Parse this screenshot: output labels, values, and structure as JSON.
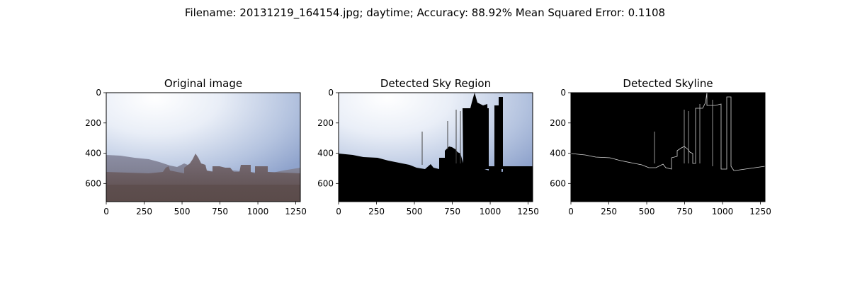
{
  "figure": {
    "suptitle": "Filename: 20131219_164154.jpg; daytime; Accuracy: 88.92% Mean Squared Error: 0.1108"
  },
  "chart_data": [
    {
      "type": "image",
      "title": "Original image",
      "xlim": [
        0,
        1280
      ],
      "ylim": [
        720,
        0
      ],
      "xticks": [
        0,
        250,
        500,
        750,
        1000,
        1250
      ],
      "yticks": [
        0,
        200,
        400,
        600
      ]
    },
    {
      "type": "image",
      "title": "Detected Sky Region",
      "xlim": [
        0,
        1280
      ],
      "ylim": [
        720,
        0
      ],
      "xticks": [
        0,
        250,
        500,
        750,
        1000,
        1250
      ],
      "yticks": [
        0,
        200,
        400,
        600
      ]
    },
    {
      "type": "image",
      "title": "Detected Skyline",
      "xlim": [
        0,
        1280
      ],
      "ylim": [
        720,
        0
      ],
      "xticks": [
        0,
        250,
        500,
        750,
        1000,
        1250
      ],
      "yticks": [
        0,
        200,
        400,
        600
      ]
    }
  ],
  "colors": {
    "sky_top": "#93a7cf",
    "sky_glow": "#f4f6fb",
    "ground": "#000000",
    "skyline_line": "#d8d8d8"
  }
}
